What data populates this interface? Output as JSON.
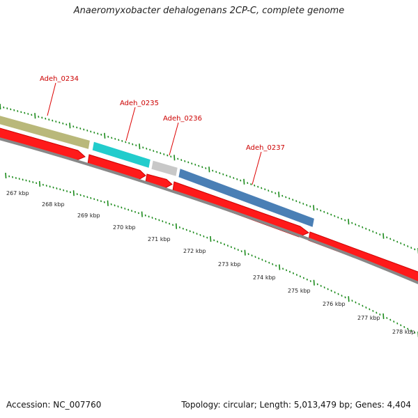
{
  "title": "Anaeromyxobacter dehalogenans 2CP-C, complete genome",
  "accession": "Accession: NC_007760",
  "summary": "Topology: circular; Length: 5,013,479 bp; Genes: 4,404",
  "colors": {
    "background": "#ffffff",
    "tick": "#1a8a1a",
    "backbone": "#888888",
    "gene_arrow": "#ff0000",
    "label": "#cc0000",
    "kbp_label": "#222222"
  },
  "genes": [
    {
      "name": "Adeh_0234",
      "color": "#b9b87a"
    },
    {
      "name": "Adeh_0235",
      "color": "#22cccc"
    },
    {
      "name": "Adeh_0236",
      "color": "#c8c8c8"
    },
    {
      "name": "Adeh_0237",
      "color": "#4a7fb5"
    }
  ],
  "scale_labels": [
    "267 kbp",
    "268 kbp",
    "269 kbp",
    "270 kbp",
    "271 kbp",
    "272 kbp",
    "273 kbp",
    "274 kbp",
    "275 kbp",
    "276 kbp",
    "277 kbp",
    "278 kbp"
  ]
}
